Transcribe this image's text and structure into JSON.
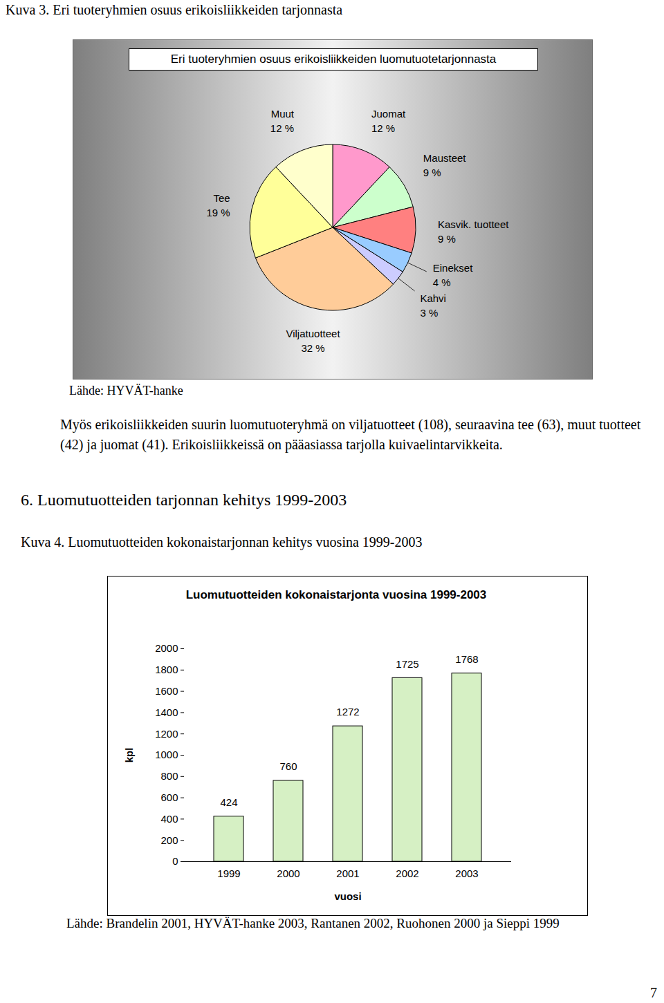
{
  "caption_1": "Kuva 3. Eri tuoteryhmien osuus erikoisliikkeiden tarjonnasta",
  "chart_data": [
    {
      "type": "pie",
      "title": "Eri tuoteryhmien osuus erikoisliikkeiden luomutuotetarjonnasta",
      "categories": [
        "Juomat",
        "Mausteet",
        "Kasvik. tuotteet",
        "Einekset",
        "Kahvi",
        "Viljatuotteet",
        "Tee",
        "Muut"
      ],
      "values": [
        12,
        9,
        9,
        4,
        3,
        32,
        19,
        12
      ],
      "value_labels": [
        "12 %",
        "9 %",
        "9 %",
        "4 %",
        "3 %",
        "32 %",
        "19 %",
        "12 %"
      ],
      "colors": [
        "#ff99cc",
        "#ccffcc",
        "#ff8080",
        "#99ccff",
        "#ccccff",
        "#ffcc99",
        "#ffff99",
        "#ffffcc"
      ],
      "data_labels": true
    },
    {
      "type": "bar",
      "title": "Luomutuotteiden kokonaistarjonta vuosina 1999-2003",
      "x_label": "vuosi",
      "y_label": "kpl",
      "categories": [
        "1999",
        "2000",
        "2001",
        "2002",
        "2003"
      ],
      "values": [
        424,
        760,
        1272,
        1725,
        1768
      ],
      "color": "#d6f0c4",
      "ylim": [
        0,
        2000
      ],
      "yticks": [
        0,
        200,
        400,
        600,
        800,
        1000,
        1200,
        1400,
        1600,
        1800,
        2000
      ],
      "grid": false,
      "data_labels": true
    }
  ],
  "source_1": "Lähde: HYVÄT-hanke",
  "paragraph": "Myös erikoisliikkeiden suurin luomutuoteryhmä on viljatuotteet (108), seuraavina tee (63), muut tuotteet (42) ja juomat (41). Erikoisliikkeissä on pääasiassa tarjolla kuivaelintarvikkeita.",
  "heading": "6. Luomutuotteiden tarjonnan kehitys 1999-2003",
  "caption_2": "Kuva 4. Luomutuotteiden kokonaistarjonnan kehitys vuosina 1999-2003",
  "source_2": "Lähde: Brandelin 2001, HYVÄT-hanke 2003, Rantanen 2002, Ruohonen 2000 ja Sieppi 1999",
  "page_number": "7"
}
